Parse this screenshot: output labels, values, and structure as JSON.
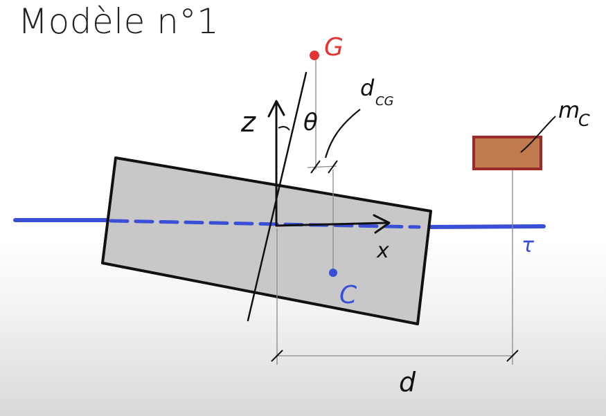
{
  "page": {
    "title": "Modèle n°1"
  },
  "labels": {
    "G": "G",
    "C": "C",
    "z": "z",
    "x": "x",
    "theta": "θ",
    "d": "d",
    "dCG": "d",
    "dCG_sub": "CG",
    "mC": "m",
    "mC_sub": "C",
    "tick": "τ"
  },
  "colors": {
    "ink": "#111111",
    "axis": "#3a4fd6",
    "red": "#e33535",
    "block": "#c8c8c8",
    "mass_fill": "#c07a4e",
    "mass_stroke": "#9b2a2a"
  }
}
